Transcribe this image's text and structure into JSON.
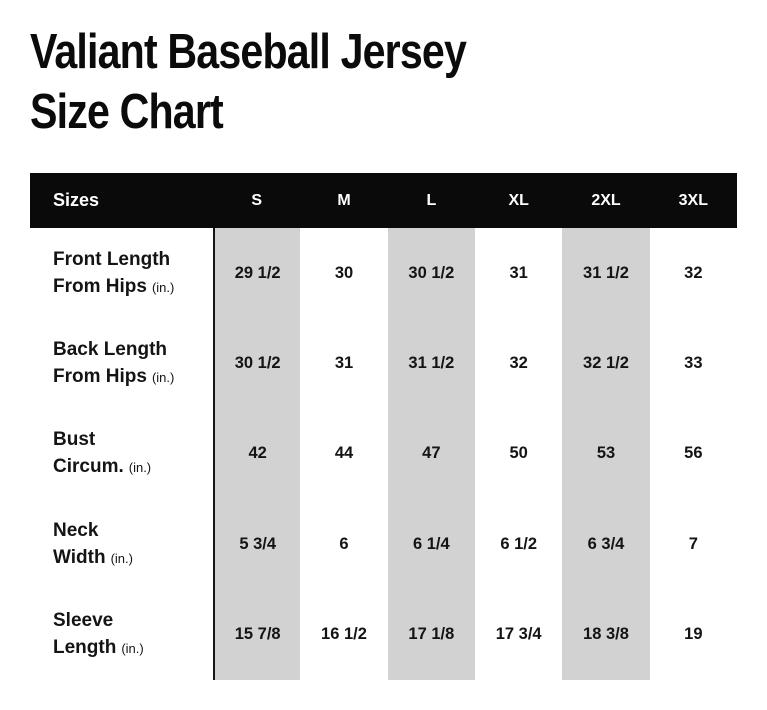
{
  "header": {
    "title_line1": "Valiant Baseball Jersey",
    "title_line2": "Size Chart"
  },
  "colors": {
    "header_bar_bg": "#0a0a0a",
    "header_bar_text": "#ffffff",
    "striped_column_bg": "#d2d2d2",
    "body_text": "#141414",
    "page_bg": "#ffffff"
  },
  "chart_data": {
    "type": "table",
    "title": "Valiant Baseball Jersey Size Chart",
    "header": {
      "label": "Sizes",
      "sizes": [
        "S",
        "M",
        "L",
        "XL",
        "2XL",
        "3XL"
      ]
    },
    "striped_size_columns": [
      "S",
      "L",
      "2XL"
    ],
    "unit": "in.",
    "rows": [
      {
        "label_lines": [
          "Front Length",
          "From Hips"
        ],
        "unit_suffix": "(in.)",
        "values": [
          "29 1/2",
          "30",
          "30 1/2",
          "31",
          "31 1/2",
          "32"
        ]
      },
      {
        "label_lines": [
          "Back Length",
          "From Hips"
        ],
        "unit_suffix": "(in.)",
        "values": [
          "30 1/2",
          "31",
          "31 1/2",
          "32",
          "32 1/2",
          "33"
        ]
      },
      {
        "label_lines": [
          "Bust",
          "Circum."
        ],
        "unit_suffix": "(in.)",
        "values": [
          "42",
          "44",
          "47",
          "50",
          "53",
          "56"
        ]
      },
      {
        "label_lines": [
          "Neck",
          "Width"
        ],
        "unit_suffix": "(in.)",
        "values": [
          "5 3/4",
          "6",
          "6 1/4",
          "6 1/2",
          "6 3/4",
          "7"
        ]
      },
      {
        "label_lines": [
          "Sleeve",
          "Length"
        ],
        "unit_suffix": "(in.)",
        "values": [
          "15 7/8",
          "16 1/2",
          "17 1/8",
          "17 3/4",
          "18 3/8",
          "19"
        ]
      }
    ]
  }
}
